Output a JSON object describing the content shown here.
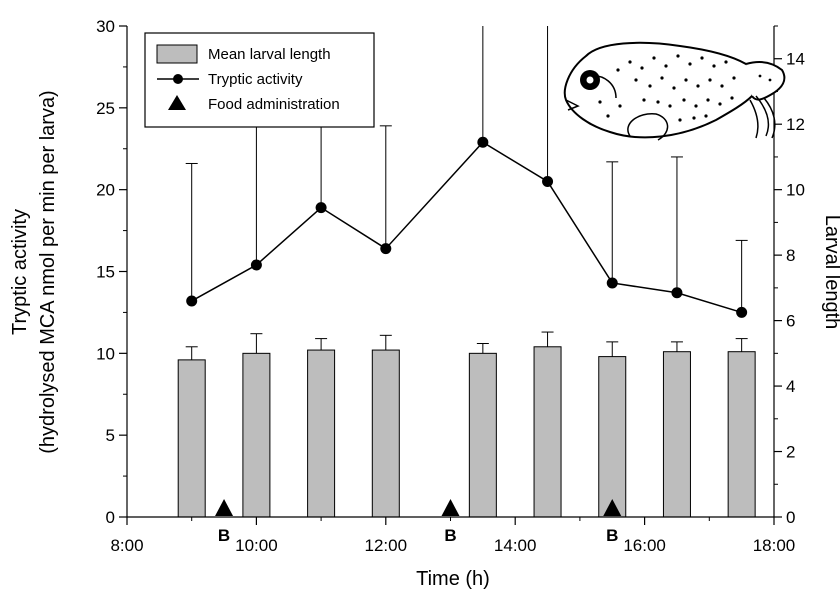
{
  "chart_data": {
    "type": "bar",
    "xlabel": "Time (h)",
    "ylabel_left_line1": "Tryptic activity",
    "ylabel_left_line2": "(hydrolysed MCA nmol per min per larva)",
    "ylabel_right": "Larval length",
    "xlim": [
      8,
      18
    ],
    "ylim_left": [
      0,
      30
    ],
    "ylim_right": [
      0,
      15
    ],
    "x_ticks": [
      8,
      10,
      12,
      14,
      16,
      18
    ],
    "x_tick_labels": [
      "8:00",
      "10:00",
      "12:00",
      "14:00",
      "16:00",
      "18:00"
    ],
    "y_left_ticks": [
      0,
      5,
      10,
      15,
      20,
      25,
      30
    ],
    "y_left_tick_labels": [
      "0",
      "5",
      "10",
      "15",
      "20",
      "25",
      "30"
    ],
    "y_right_ticks": [
      0,
      2,
      4,
      6,
      8,
      10,
      12,
      14
    ],
    "y_right_tick_labels": [
      "0",
      "2",
      "4",
      "6",
      "8",
      "10",
      "12",
      "14"
    ],
    "legend": {
      "placement": "top-left",
      "entries": [
        "Mean larval length",
        "Tryptic activity",
        "Food administration"
      ]
    },
    "series": [
      {
        "name": "Mean larval length",
        "kind": "bar",
        "axis": "right",
        "color": "#bdbdbd",
        "x": [
          9.0,
          10.0,
          11.0,
          12.0,
          13.5,
          14.5,
          15.5,
          16.5,
          17.5
        ],
        "values": [
          4.8,
          5.0,
          5.1,
          5.1,
          5.0,
          5.2,
          4.9,
          5.05,
          5.05
        ],
        "errors": [
          0.4,
          0.6,
          0.35,
          0.45,
          0.3,
          0.45,
          0.45,
          0.3,
          0.4
        ]
      },
      {
        "name": "Tryptic activity",
        "kind": "line",
        "axis": "left",
        "color": "#000000",
        "x": [
          9.0,
          10.0,
          11.0,
          12.0,
          13.5,
          14.5,
          15.5,
          16.5,
          17.5
        ],
        "values": [
          13.2,
          15.4,
          18.9,
          16.4,
          22.9,
          20.5,
          14.3,
          13.7,
          12.5
        ],
        "errors": [
          8.4,
          10.5,
          9.0,
          7.5,
          12.0,
          11.5,
          7.4,
          8.3,
          4.4
        ]
      },
      {
        "name": "Food administration",
        "kind": "marker",
        "axis": "left",
        "color": "#000000",
        "x": [
          9.5,
          13.0,
          15.5
        ],
        "values": [
          0,
          0,
          0
        ],
        "labels": [
          "B",
          "B",
          "B"
        ]
      }
    ],
    "annotations": [
      {
        "type": "illustration",
        "subject": "fish-larva",
        "placement": "top-right"
      }
    ]
  }
}
